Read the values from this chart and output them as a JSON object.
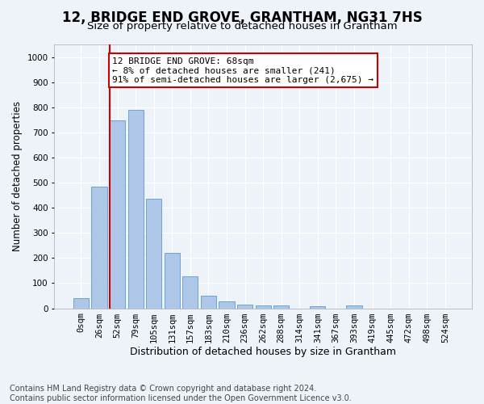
{
  "title": "12, BRIDGE END GROVE, GRANTHAM, NG31 7HS",
  "subtitle": "Size of property relative to detached houses in Grantham",
  "xlabel": "Distribution of detached houses by size in Grantham",
  "ylabel": "Number of detached properties",
  "bar_color": "#aec6e8",
  "bar_edge_color": "#5b9bd5",
  "background_color": "#eef2f9",
  "grid_color": "#ffffff",
  "categories": [
    "0sqm",
    "26sqm",
    "52sqm",
    "79sqm",
    "105sqm",
    "131sqm",
    "157sqm",
    "183sqm",
    "210sqm",
    "236sqm",
    "262sqm",
    "288sqm",
    "314sqm",
    "341sqm",
    "367sqm",
    "393sqm",
    "419sqm",
    "445sqm",
    "472sqm",
    "498sqm",
    "524sqm"
  ],
  "values": [
    42,
    485,
    748,
    790,
    435,
    220,
    128,
    50,
    28,
    15,
    10,
    10,
    0,
    8,
    0,
    10,
    0,
    0,
    0,
    0,
    0
  ],
  "ylim": [
    0,
    1050
  ],
  "yticks": [
    0,
    100,
    200,
    300,
    400,
    500,
    600,
    700,
    800,
    900,
    1000
  ],
  "vline_x_index": 2,
  "vline_color": "#cc0000",
  "annotation_text": "12 BRIDGE END GROVE: 68sqm\n← 8% of detached houses are smaller (241)\n91% of semi-detached houses are larger (2,675) →",
  "annotation_box_color": "#ffffff",
  "annotation_box_edge_color": "#cc0000",
  "footer_line1": "Contains HM Land Registry data © Crown copyright and database right 2024.",
  "footer_line2": "Contains public sector information licensed under the Open Government Licence v3.0.",
  "footnote_fontsize": 7.0,
  "title_fontsize": 12,
  "subtitle_fontsize": 9.5,
  "xlabel_fontsize": 9,
  "ylabel_fontsize": 8.5,
  "tick_fontsize": 7.5,
  "annotation_fontsize": 8
}
